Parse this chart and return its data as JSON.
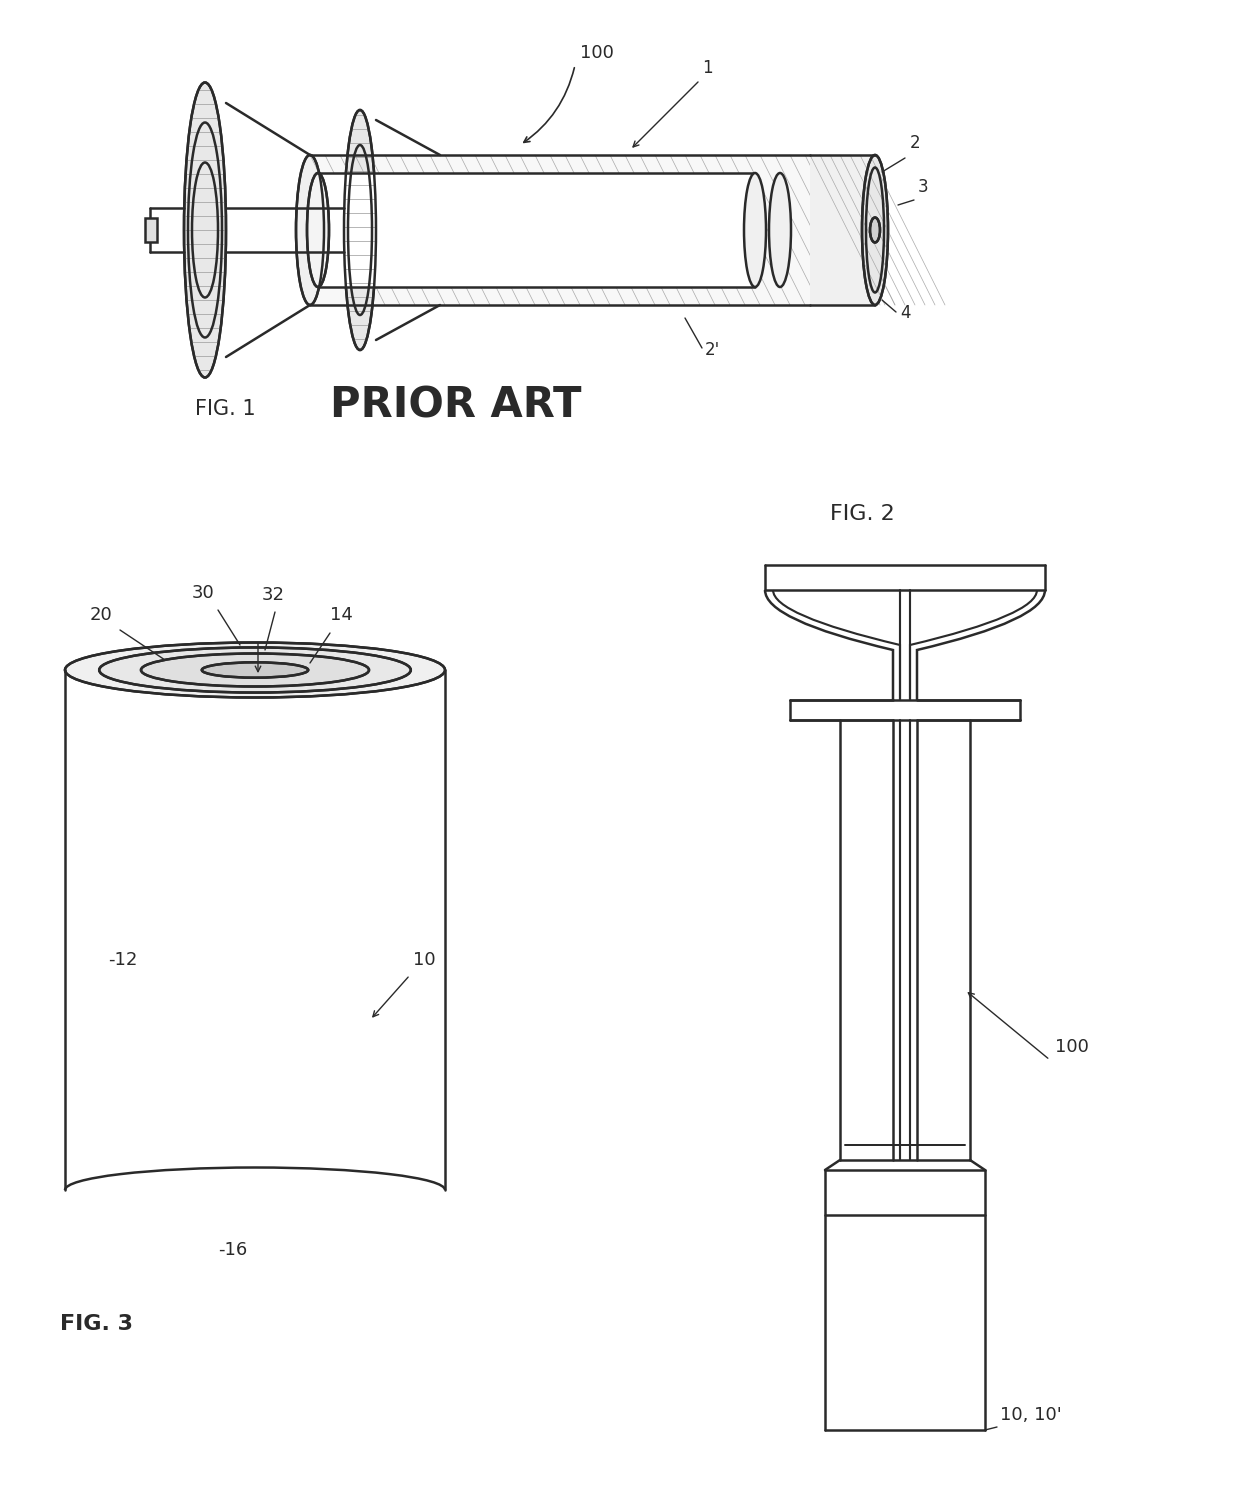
{
  "bg_color": "#ffffff",
  "line_color": "#2a2a2a",
  "fig_width": 12.4,
  "fig_height": 14.98,
  "fig1_label": "FIG. 1",
  "fig1_prior_art": "PRIOR ART",
  "fig2_label": "FIG. 2",
  "fig3_label": "FIG. 3",
  "label_100_f1": "100",
  "label_1": "1",
  "label_2": "2",
  "label_2p": "2'",
  "label_3": "3",
  "label_4": "4",
  "label_10": "10",
  "label_10_10p": "10, 10'",
  "label_12": "-12",
  "label_14": "14",
  "label_16": "-16",
  "label_20": "20",
  "label_30": "30",
  "label_32": "32",
  "label_100_f2": "100"
}
